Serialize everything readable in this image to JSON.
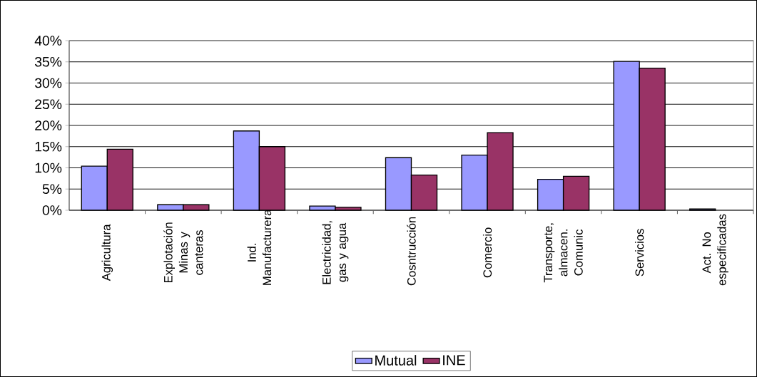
{
  "chart_data": {
    "type": "bar",
    "categories": [
      "Agricultura",
      "Explotación Minas y canteras",
      "Ind. Manufacturera",
      "Electricidad, gas y agua",
      "Cosntrucción",
      "Comercio",
      "Transporte, almacen. Comunic",
      "Servicios",
      "Act. No especificadas"
    ],
    "series": [
      {
        "name": "Mutual",
        "color": "#9999ff",
        "values": [
          10.4,
          1.3,
          18.7,
          1.0,
          12.4,
          13.0,
          7.3,
          35.1,
          0.3
        ]
      },
      {
        "name": "INE",
        "color": "#993366",
        "values": [
          14.4,
          1.3,
          15.0,
          0.7,
          8.3,
          18.3,
          8.0,
          33.5,
          null
        ]
      }
    ],
    "ylim": [
      0,
      40
    ],
    "yticks": [
      {
        "value": 0,
        "label": "0%"
      },
      {
        "value": 5,
        "label": "5%"
      },
      {
        "value": 10,
        "label": "10%"
      },
      {
        "value": 15,
        "label": "15%"
      },
      {
        "value": 20,
        "label": "20%"
      },
      {
        "value": 25,
        "label": "25%"
      },
      {
        "value": 30,
        "label": "30%"
      },
      {
        "value": 35,
        "label": "35%"
      },
      {
        "value": 40,
        "label": "40%"
      }
    ],
    "grid": "y",
    "legend": "bottom"
  }
}
